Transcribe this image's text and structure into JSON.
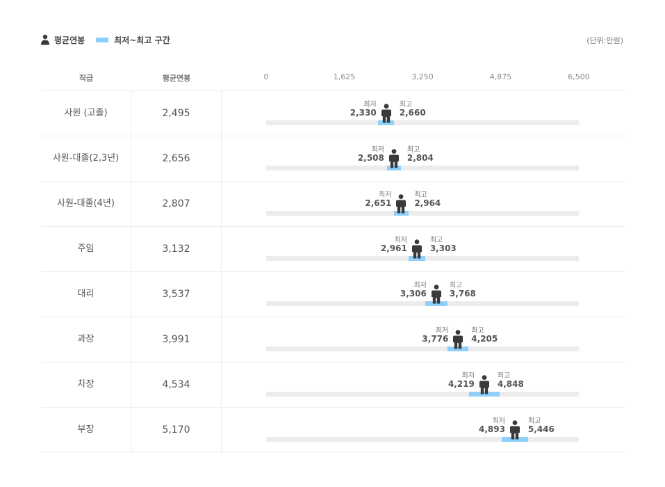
{
  "legend": {
    "average_label": "평균연봉",
    "range_label": "최저~최고 구간"
  },
  "unit_label": "(단위:만원)",
  "table": {
    "col_grade": "직급",
    "col_avg": "평균연봉"
  },
  "colors": {
    "range": "#8fd0fb",
    "track": "#ececec",
    "person": "#3a3a3a"
  },
  "chart_data": {
    "type": "range-bar",
    "title": "",
    "unit": "만원",
    "xlim": [
      0,
      6500
    ],
    "ticks": [
      0,
      1625,
      3250,
      4875,
      6500
    ],
    "tick_labels": [
      "0",
      "1,625",
      "3,250",
      "4,875",
      "6,500"
    ],
    "min_label": "최저",
    "max_label": "최고",
    "rows": [
      {
        "grade": "사원 (고졸)",
        "avg": 2495,
        "avg_label": "2,495",
        "min": 2330,
        "min_label": "2,330",
        "max": 2660,
        "max_label": "2,660"
      },
      {
        "grade": "사원-대졸(2,3년)",
        "avg": 2656,
        "avg_label": "2,656",
        "min": 2508,
        "min_label": "2,508",
        "max": 2804,
        "max_label": "2,804"
      },
      {
        "grade": "사원-대졸(4년)",
        "avg": 2807,
        "avg_label": "2,807",
        "min": 2651,
        "min_label": "2,651",
        "max": 2964,
        "max_label": "2,964"
      },
      {
        "grade": "주임",
        "avg": 3132,
        "avg_label": "3,132",
        "min": 2961,
        "min_label": "2,961",
        "max": 3303,
        "max_label": "3,303"
      },
      {
        "grade": "대리",
        "avg": 3537,
        "avg_label": "3,537",
        "min": 3306,
        "min_label": "3,306",
        "max": 3768,
        "max_label": "3,768"
      },
      {
        "grade": "과장",
        "avg": 3991,
        "avg_label": "3,991",
        "min": 3776,
        "min_label": "3,776",
        "max": 4205,
        "max_label": "4,205"
      },
      {
        "grade": "차장",
        "avg": 4534,
        "avg_label": "4,534",
        "min": 4219,
        "min_label": "4,219",
        "max": 4848,
        "max_label": "4,848"
      },
      {
        "grade": "부장",
        "avg": 5170,
        "avg_label": "5,170",
        "min": 4893,
        "min_label": "4,893",
        "max": 5446,
        "max_label": "5,446"
      }
    ]
  }
}
